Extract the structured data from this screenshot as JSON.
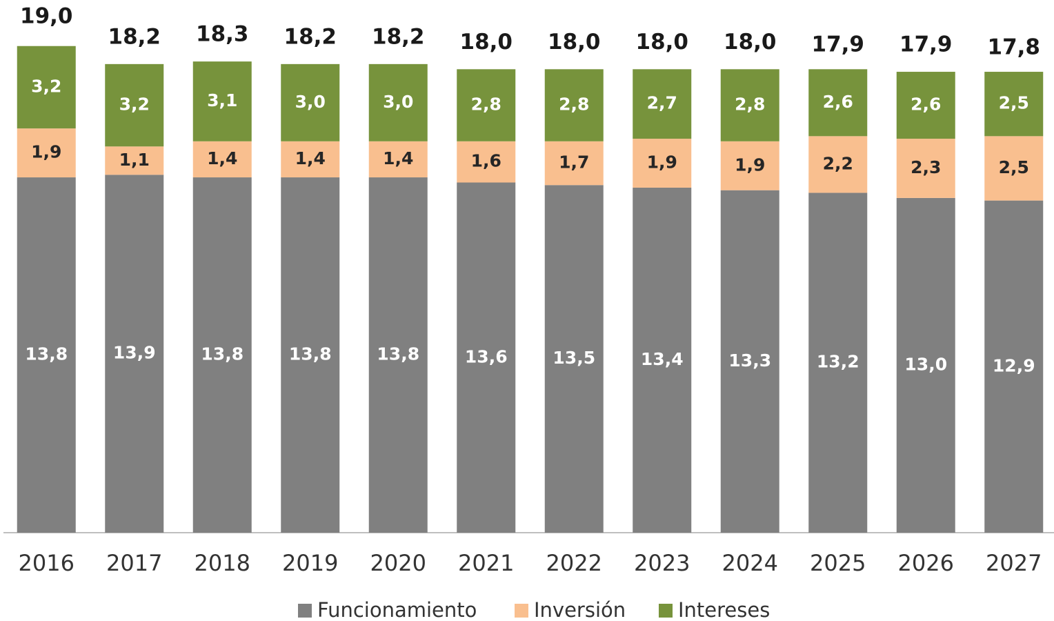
{
  "chart_data": {
    "type": "stacked_bar",
    "categories": [
      "2016",
      "2017",
      "2018",
      "2019",
      "2020",
      "2021",
      "2022",
      "2023",
      "2024",
      "2025",
      "2026",
      "2027"
    ],
    "series": [
      {
        "name": "Funcionamiento",
        "color": "#808080",
        "label_color": "#ffffff",
        "values": [
          13.8,
          13.9,
          13.8,
          13.8,
          13.8,
          13.6,
          13.5,
          13.4,
          13.3,
          13.2,
          13.0,
          12.9
        ],
        "value_labels": [
          "13,8",
          "13,9",
          "13,8",
          "13,8",
          "13,8",
          "13,6",
          "13,5",
          "13,4",
          "13,3",
          "13,2",
          "13,0",
          "12,9"
        ]
      },
      {
        "name": "Inversión",
        "color": "#f9bf8f",
        "label_color": "#262626",
        "values": [
          1.9,
          1.1,
          1.4,
          1.4,
          1.4,
          1.6,
          1.7,
          1.9,
          1.9,
          2.2,
          2.3,
          2.5
        ],
        "value_labels": [
          "1,9",
          "1,1",
          "1,4",
          "1,4",
          "1,4",
          "1,6",
          "1,7",
          "1,9",
          "1,9",
          "2,2",
          "2,3",
          "2,5"
        ]
      },
      {
        "name": "Intereses",
        "color": "#77933c",
        "label_color": "#ffffff",
        "values": [
          3.2,
          3.2,
          3.1,
          3.0,
          3.0,
          2.8,
          2.8,
          2.7,
          2.8,
          2.6,
          2.6,
          2.5
        ],
        "value_labels": [
          "3,2",
          "3,2",
          "3,1",
          "3,0",
          "3,0",
          "2,8",
          "2,8",
          "2,7",
          "2,8",
          "2,6",
          "2,6",
          "2,5"
        ]
      }
    ],
    "totals": [
      19.0,
      18.2,
      18.3,
      18.2,
      18.2,
      18.0,
      18.0,
      18.0,
      18.0,
      17.9,
      17.9,
      17.8
    ],
    "total_labels": [
      "19,0",
      "18,2",
      "18,3",
      "18,2",
      "18,2",
      "18,0",
      "18,0",
      "18,0",
      "18,0",
      "17,9",
      "17,9",
      "17,8"
    ],
    "legend": "bottom"
  }
}
